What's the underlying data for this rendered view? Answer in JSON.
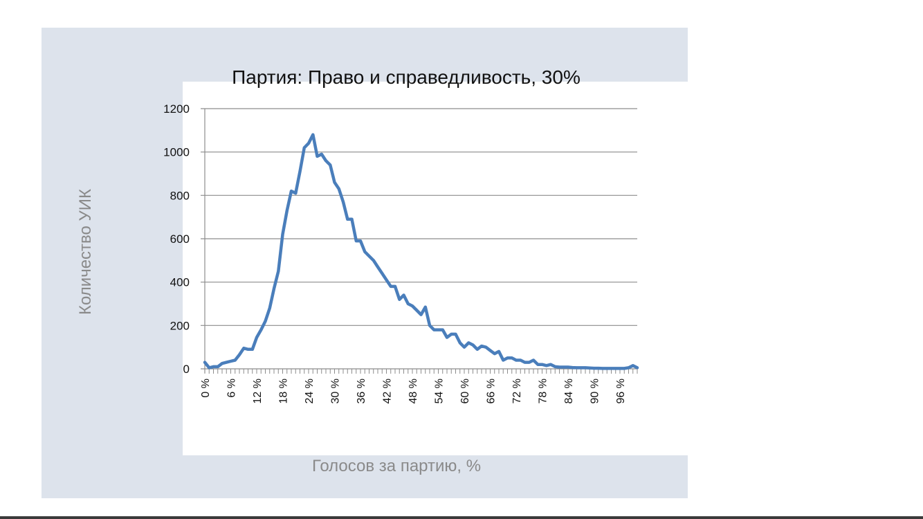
{
  "chart_data": {
    "type": "line",
    "title": "Партия: Право и справедливость, 30%",
    "xlabel": "Голосов за партию, %",
    "ylabel": "Количество УИК",
    "xlim": [
      0,
      100
    ],
    "ylim": [
      0,
      1200
    ],
    "yticks": [
      0,
      200,
      400,
      600,
      800,
      1000,
      1200
    ],
    "xtick_labels": [
      "0 %",
      "6 %",
      "12 %",
      "18 %",
      "24 %",
      "30 %",
      "36 %",
      "42 %",
      "48 %",
      "54 %",
      "60 %",
      "66 %",
      "72 %",
      "78 %",
      "84 %",
      "90 %",
      "96 %"
    ],
    "xtick_values": [
      0,
      6,
      12,
      18,
      24,
      30,
      36,
      42,
      48,
      54,
      60,
      66,
      72,
      78,
      84,
      90,
      96
    ],
    "grid": true,
    "legend": "none",
    "color": "#4a7ebb",
    "series": [
      {
        "x": [
          0,
          1,
          2,
          3,
          4,
          5,
          6,
          7,
          8,
          9,
          10,
          11,
          12,
          13,
          14,
          15,
          16,
          17,
          18,
          19,
          20,
          21,
          22,
          23,
          24,
          25,
          26,
          27,
          28,
          29,
          30,
          31,
          32,
          33,
          34,
          35,
          36,
          37,
          38,
          39,
          40,
          41,
          42,
          43,
          44,
          45,
          46,
          47,
          48,
          49,
          50,
          51,
          52,
          53,
          54,
          55,
          56,
          57,
          58,
          59,
          60,
          61,
          62,
          63,
          64,
          65,
          66,
          67,
          68,
          69,
          70,
          71,
          72,
          73,
          74,
          75,
          76,
          77,
          78,
          79,
          80,
          81,
          82,
          83,
          84,
          85,
          86,
          87,
          88,
          89,
          90,
          91,
          92,
          93,
          94,
          95,
          96,
          97,
          98,
          99,
          100
        ],
        "y": [
          30,
          5,
          10,
          10,
          25,
          30,
          35,
          40,
          65,
          95,
          90,
          90,
          145,
          180,
          220,
          280,
          370,
          450,
          620,
          730,
          820,
          810,
          910,
          1020,
          1040,
          1080,
          980,
          990,
          960,
          940,
          860,
          830,
          770,
          690,
          690,
          590,
          590,
          540,
          520,
          500,
          470,
          440,
          410,
          380,
          380,
          320,
          340,
          300,
          290,
          270,
          250,
          285,
          200,
          180,
          180,
          180,
          145,
          160,
          160,
          120,
          100,
          120,
          110,
          90,
          105,
          100,
          85,
          70,
          80,
          40,
          50,
          50,
          40,
          40,
          30,
          30,
          40,
          20,
          20,
          15,
          20,
          10,
          8,
          8,
          8,
          6,
          5,
          5,
          5,
          4,
          3,
          3,
          2,
          2,
          2,
          2,
          2,
          2,
          5,
          15,
          5
        ]
      }
    ]
  }
}
